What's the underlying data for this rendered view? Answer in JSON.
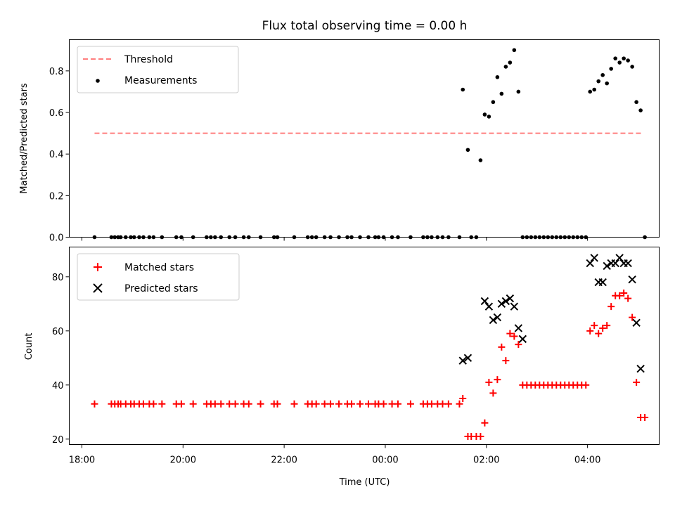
{
  "chart_data": [
    {
      "type": "scatter",
      "title": "Flux total observing time = 0.00 h",
      "ylabel": "Matched/Predicted stars",
      "xlabel": "",
      "ylim": [
        0,
        0.95
      ],
      "xlim": [
        "17:45",
        "05:25"
      ],
      "yticks": [
        "0.0",
        "0.2",
        "0.4",
        "0.6",
        "0.8"
      ],
      "grid": false,
      "legend_position": "top-left",
      "threshold": {
        "name": "Threshold",
        "value": 0.5,
        "x_range": [
          "18:15",
          "05:05"
        ],
        "color": "#ff7f7f",
        "style": "dashed"
      },
      "series": [
        {
          "name": "Measurements",
          "color": "#000000",
          "marker": "dot",
          "x": [
            "18:15",
            "18:35",
            "18:39",
            "18:43",
            "18:46",
            "18:52",
            "18:58",
            "19:02",
            "19:08",
            "19:13",
            "19:20",
            "19:25",
            "19:35",
            "19:52",
            "19:58",
            "20:12",
            "20:28",
            "20:33",
            "20:38",
            "20:45",
            "20:55",
            "21:02",
            "21:12",
            "21:18",
            "21:32",
            "21:48",
            "21:52",
            "22:12",
            "22:28",
            "22:33",
            "22:38",
            "22:48",
            "22:55",
            "23:05",
            "23:15",
            "23:20",
            "23:30",
            "23:40",
            "23:48",
            "23:52",
            "23:58",
            "00:08",
            "00:15",
            "00:30",
            "00:45",
            "00:50",
            "00:55",
            "01:02",
            "01:08",
            "01:15",
            "01:28",
            "01:32",
            "01:38",
            "01:42",
            "01:48",
            "01:53",
            "01:58",
            "02:03",
            "02:08",
            "02:13",
            "02:18",
            "02:23",
            "02:28",
            "02:33",
            "02:38",
            "02:43",
            "02:48",
            "02:53",
            "02:58",
            "03:03",
            "03:08",
            "03:13",
            "03:18",
            "03:23",
            "03:28",
            "03:33",
            "03:38",
            "03:43",
            "03:48",
            "03:53",
            "03:58",
            "04:03",
            "04:08",
            "04:13",
            "04:18",
            "04:23",
            "04:28",
            "04:33",
            "04:38",
            "04:43",
            "04:48",
            "04:53",
            "04:58",
            "05:03",
            "05:08"
          ],
          "y": [
            0.0,
            0.0,
            0.0,
            0.0,
            0.0,
            0.0,
            0.0,
            0.0,
            0.0,
            0.0,
            0.0,
            0.0,
            0.0,
            0.0,
            0.0,
            0.0,
            0.0,
            0.0,
            0.0,
            0.0,
            0.0,
            0.0,
            0.0,
            0.0,
            0.0,
            0.0,
            0.0,
            0.0,
            0.0,
            0.0,
            0.0,
            0.0,
            0.0,
            0.0,
            0.0,
            0.0,
            0.0,
            0.0,
            0.0,
            0.0,
            0.0,
            0.0,
            0.0,
            0.0,
            0.0,
            0.0,
            0.0,
            0.0,
            0.0,
            0.0,
            0.0,
            0.71,
            0.42,
            0.0,
            0.0,
            0.37,
            0.59,
            0.58,
            0.65,
            0.77,
            0.69,
            0.82,
            0.84,
            0.9,
            0.7,
            0.0,
            0.0,
            0.0,
            0.0,
            0.0,
            0.0,
            0.0,
            0.0,
            0.0,
            0.0,
            0.0,
            0.0,
            0.0,
            0.0,
            0.0,
            0.0,
            0.7,
            0.71,
            0.75,
            0.78,
            0.74,
            0.81,
            0.86,
            0.84,
            0.86,
            0.85,
            0.82,
            0.65,
            0.61,
            0.0
          ]
        }
      ]
    },
    {
      "type": "scatter",
      "title": "",
      "xlabel": "Time (UTC)",
      "ylabel": "Count",
      "ylim": [
        18,
        91
      ],
      "xlim": [
        "17:45",
        "05:25"
      ],
      "xticks": [
        "18:00",
        "20:00",
        "22:00",
        "00:00",
        "02:00",
        "04:00"
      ],
      "yticks": [
        "20",
        "40",
        "60",
        "80"
      ],
      "grid": false,
      "legend_position": "top-left",
      "series": [
        {
          "name": "Matched stars",
          "color": "#ff0000",
          "marker": "plus",
          "x": [
            "18:15",
            "18:35",
            "18:39",
            "18:43",
            "18:46",
            "18:52",
            "18:58",
            "19:02",
            "19:08",
            "19:13",
            "19:20",
            "19:25",
            "19:35",
            "19:52",
            "19:58",
            "20:12",
            "20:28",
            "20:33",
            "20:38",
            "20:45",
            "20:55",
            "21:02",
            "21:12",
            "21:18",
            "21:32",
            "21:48",
            "21:52",
            "22:12",
            "22:28",
            "22:33",
            "22:38",
            "22:48",
            "22:55",
            "23:05",
            "23:15",
            "23:20",
            "23:30",
            "23:40",
            "23:48",
            "23:52",
            "23:58",
            "00:08",
            "00:15",
            "00:30",
            "00:45",
            "00:50",
            "00:55",
            "01:02",
            "01:08",
            "01:15",
            "01:28",
            "01:32",
            "01:38",
            "01:42",
            "01:48",
            "01:53",
            "01:58",
            "02:03",
            "02:08",
            "02:13",
            "02:18",
            "02:23",
            "02:28",
            "02:33",
            "02:38",
            "02:43",
            "02:48",
            "02:53",
            "02:58",
            "03:03",
            "03:08",
            "03:13",
            "03:18",
            "03:23",
            "03:28",
            "03:33",
            "03:38",
            "03:43",
            "03:48",
            "03:53",
            "03:58",
            "04:03",
            "04:08",
            "04:13",
            "04:18",
            "04:23",
            "04:28",
            "04:33",
            "04:38",
            "04:43",
            "04:48",
            "04:53",
            "04:58",
            "05:03",
            "05:08"
          ],
          "y": [
            33,
            33,
            33,
            33,
            33,
            33,
            33,
            33,
            33,
            33,
            33,
            33,
            33,
            33,
            33,
            33,
            33,
            33,
            33,
            33,
            33,
            33,
            33,
            33,
            33,
            33,
            33,
            33,
            33,
            33,
            33,
            33,
            33,
            33,
            33,
            33,
            33,
            33,
            33,
            33,
            33,
            33,
            33,
            33,
            33,
            33,
            33,
            33,
            33,
            33,
            33,
            35,
            21,
            21,
            21,
            21,
            26,
            41,
            37,
            42,
            54,
            49,
            59,
            58,
            55,
            40,
            40,
            40,
            40,
            40,
            40,
            40,
            40,
            40,
            40,
            40,
            40,
            40,
            40,
            40,
            40,
            60,
            62,
            59,
            61,
            62,
            69,
            73,
            73,
            74,
            72,
            65,
            41,
            28,
            28
          ]
        },
        {
          "name": "Predicted stars",
          "color": "#000000",
          "marker": "x",
          "x": [
            "01:32",
            "01:38",
            "01:58",
            "02:03",
            "02:08",
            "02:13",
            "02:18",
            "02:23",
            "02:28",
            "02:33",
            "02:38",
            "02:43",
            "04:03",
            "04:08",
            "04:13",
            "04:18",
            "04:23",
            "04:28",
            "04:33",
            "04:38",
            "04:43",
            "04:48",
            "04:53",
            "04:58",
            "05:03"
          ],
          "y": [
            49,
            50,
            71,
            69,
            64,
            65,
            70,
            71,
            72,
            69,
            61,
            57,
            85,
            87,
            78,
            78,
            84,
            85,
            85,
            87,
            85,
            85,
            79,
            63,
            46
          ]
        }
      ]
    }
  ]
}
